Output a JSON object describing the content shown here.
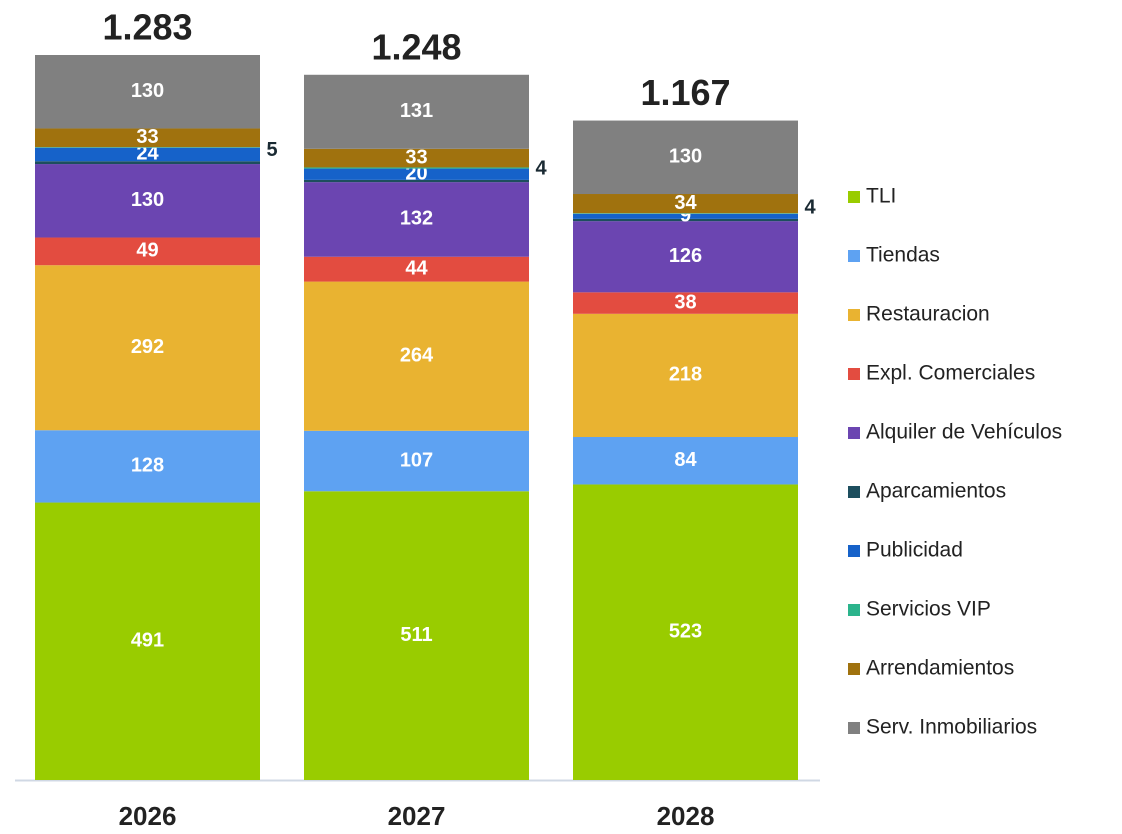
{
  "chart_data": {
    "type": "stacked_bar",
    "categories": [
      "2026",
      "2027",
      "2028"
    ],
    "totals": [
      {
        "value": 1283,
        "label": "1.283"
      },
      {
        "value": 1248,
        "label": "1.248"
      },
      {
        "value": 1167,
        "label": "1.167"
      }
    ],
    "series": [
      {
        "name": "TLI",
        "color": "#99cc00",
        "values": [
          491,
          511,
          523
        ]
      },
      {
        "name": "Tiendas",
        "color": "#5ea2f2",
        "values": [
          128,
          107,
          84
        ]
      },
      {
        "name": "Restauracion",
        "color": "#e9b331",
        "values": [
          292,
          264,
          218
        ]
      },
      {
        "name": "Expl. Comerciales",
        "color": "#e34c40",
        "values": [
          49,
          44,
          38
        ]
      },
      {
        "name": "Alquiler de Vehículos",
        "color": "#6b45b1",
        "values": [
          130,
          132,
          126
        ]
      },
      {
        "name": "Aparcamientos",
        "color": "#1d4e5e",
        "values": [
          5,
          4,
          4
        ],
        "label_position": "outside"
      },
      {
        "name": "Publicidad",
        "color": "#1662c9",
        "values": [
          24,
          20,
          9
        ]
      },
      {
        "name": "Servicios VIP",
        "color": "#2bb48c",
        "values": [
          1,
          2,
          1
        ],
        "show_labels": false
      },
      {
        "name": "Arrendamientos",
        "color": "#a0720e",
        "values": [
          33,
          33,
          34
        ]
      },
      {
        "name": "Serv. Inmobiliarios",
        "color": "#808080",
        "values": [
          130,
          131,
          130
        ]
      }
    ]
  }
}
